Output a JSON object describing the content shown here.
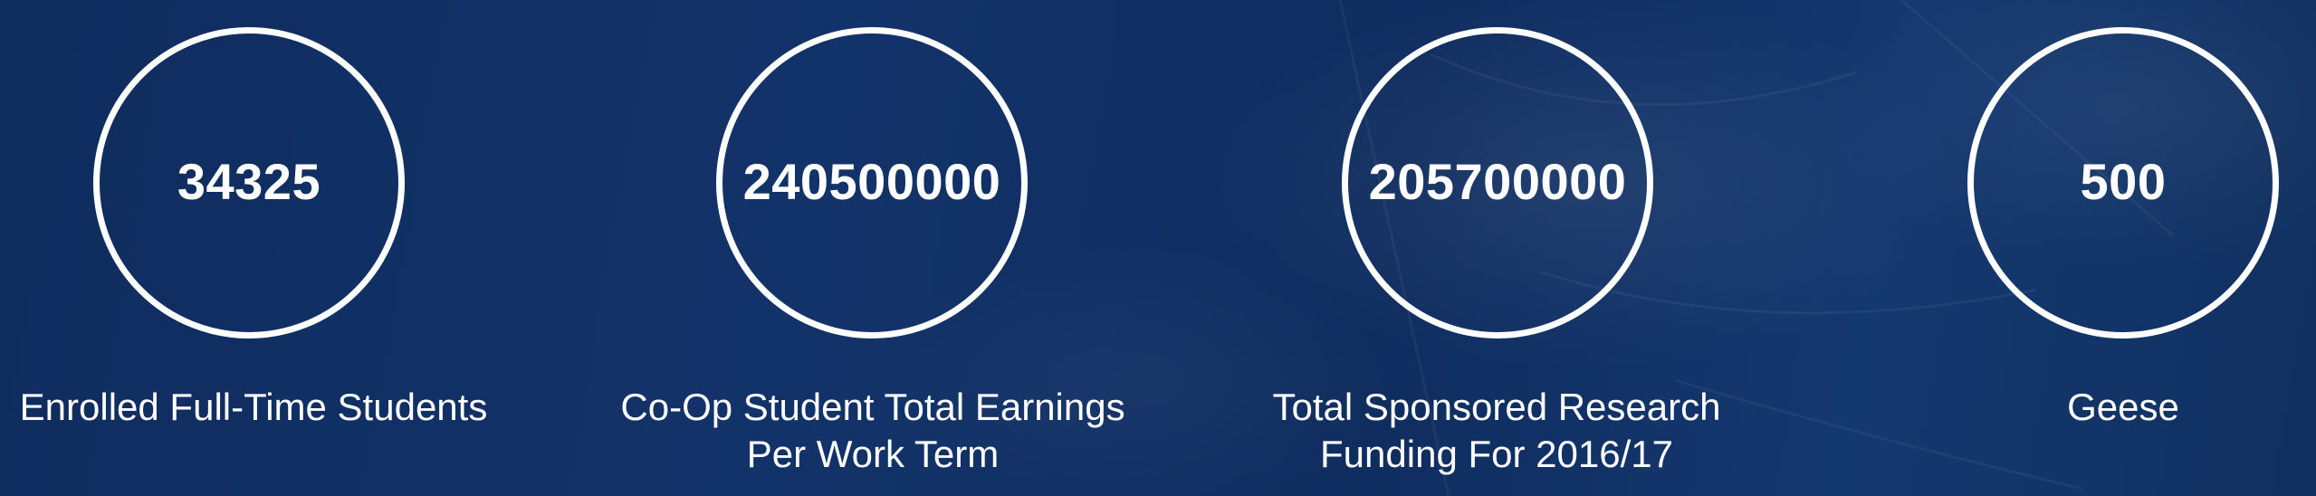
{
  "stats": [
    {
      "value": "34325",
      "label": "Enrolled Full-Time Students"
    },
    {
      "value": "240500000",
      "label": "Co-Op Student Total Earnings\nPer Work Term"
    },
    {
      "value": "205700000",
      "label": "Total Sponsored Research\nFunding For 2016/17"
    },
    {
      "value": "500",
      "label": "Geese"
    }
  ],
  "colors": {
    "background": "#0f2c5e",
    "text": "#ffffff",
    "circle_border": "#ffffff"
  }
}
